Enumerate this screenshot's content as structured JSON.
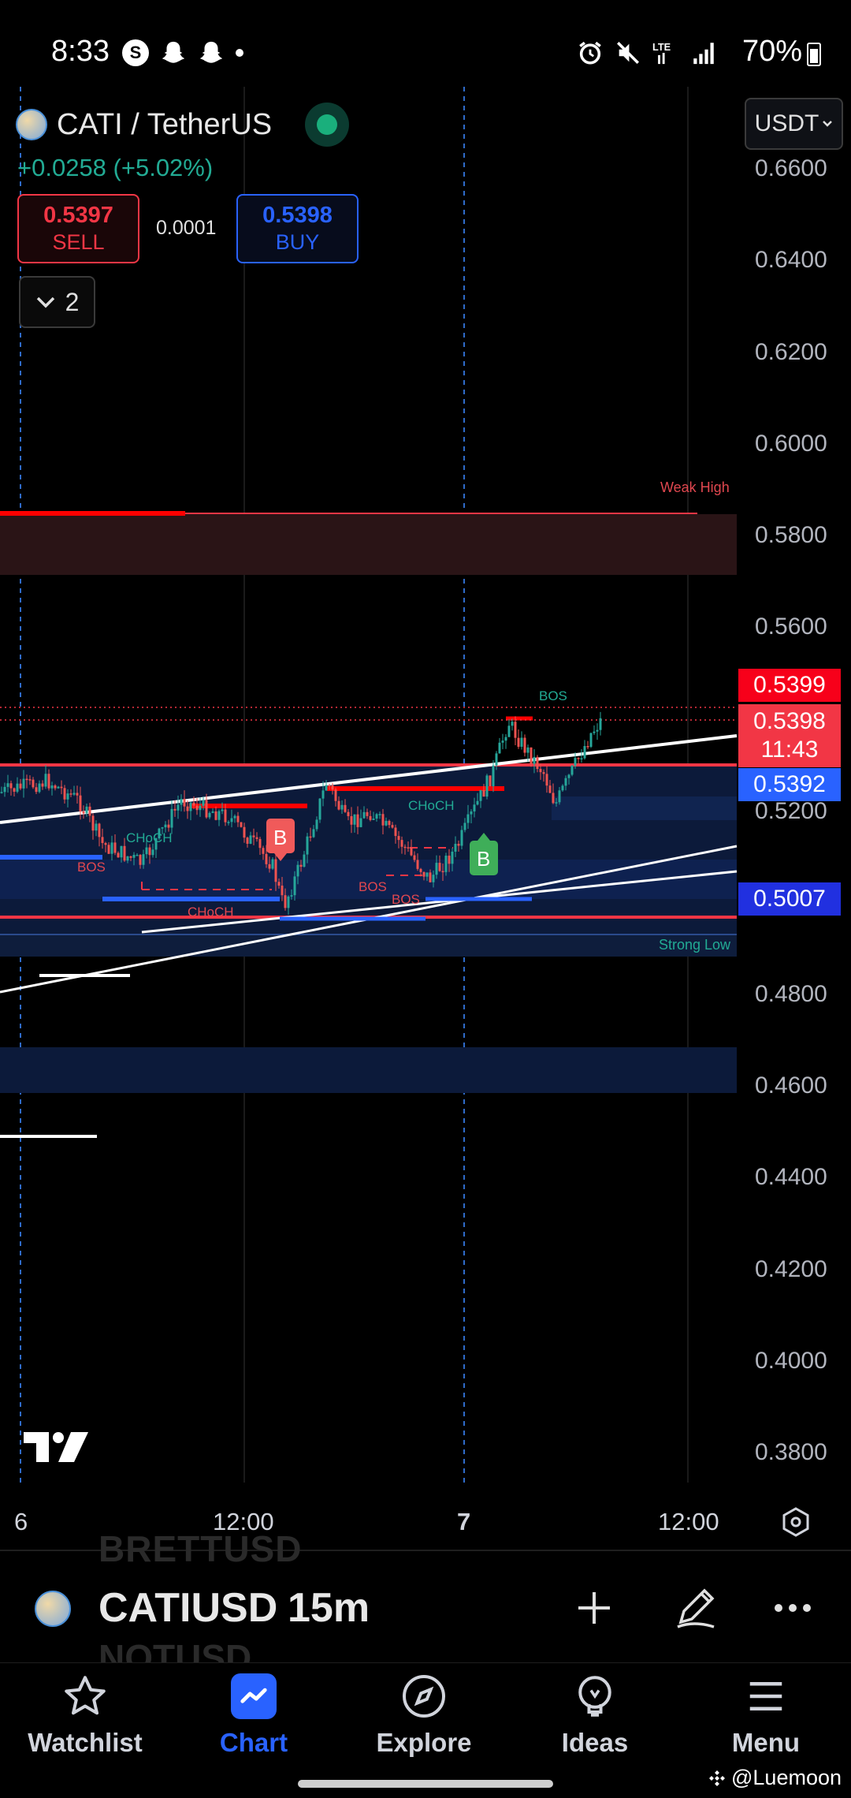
{
  "status_bar": {
    "time": "8:33",
    "battery": "70%"
  },
  "symbol": {
    "name": "CATI / TetherUS",
    "change": "+0.0258 (+5.02%)",
    "currency": "USDT",
    "market_status_color": "#1aaf7c"
  },
  "trade": {
    "sell_price": "0.5397",
    "sell_label": "SELL",
    "spread": "0.0001",
    "buy_price": "0.5398",
    "buy_label": "BUY"
  },
  "indicators": {
    "count": "2"
  },
  "price_axis": {
    "labels": [
      "0.6600",
      "0.6400",
      "0.6200",
      "0.6000",
      "0.5800",
      "0.5600",
      "0.5200",
      "0.4800",
      "0.4600",
      "0.4400",
      "0.4200",
      "0.4000",
      "0.3800"
    ],
    "tags": [
      {
        "value": "0.5399",
        "color": "#f7001a"
      },
      {
        "value": "0.5398",
        "extra": "11:43",
        "color": "#f23645"
      },
      {
        "value": "0.5392",
        "color": "#2962ff"
      },
      {
        "value": "0.5007",
        "color": "#2130e0"
      }
    ]
  },
  "time_axis": {
    "labels": [
      "6",
      "12:00",
      "7",
      "12:00"
    ]
  },
  "chart_annotations": {
    "weak_high": "Weak High",
    "strong_low": "Strong Low",
    "bos": "BOS",
    "choch": "CHoCH",
    "buy_marker": "B"
  },
  "chart_data": {
    "type": "candlestick",
    "ylim": [
      0.37,
      0.67
    ],
    "x_ticks": [
      "6",
      "12:00",
      "7",
      "12:00"
    ],
    "last_price": 0.5398,
    "zones": [
      {
        "name": "Weak High",
        "from": 0.5717,
        "to": 0.5847
      },
      {
        "name": "Strong Low",
        "from": 0.4912,
        "to": 0.4955
      }
    ]
  },
  "symbol_bar": {
    "symbol": "CATIUSD",
    "interval": "15m",
    "ghost_top": "BRETTUSD",
    "ghost_bottom": "NOTUSD"
  },
  "nav": {
    "watchlist": "Watchlist",
    "chart": "Chart",
    "explore": "Explore",
    "ideas": "Ideas",
    "menu": "Menu"
  },
  "watermark": "@Luemoon"
}
